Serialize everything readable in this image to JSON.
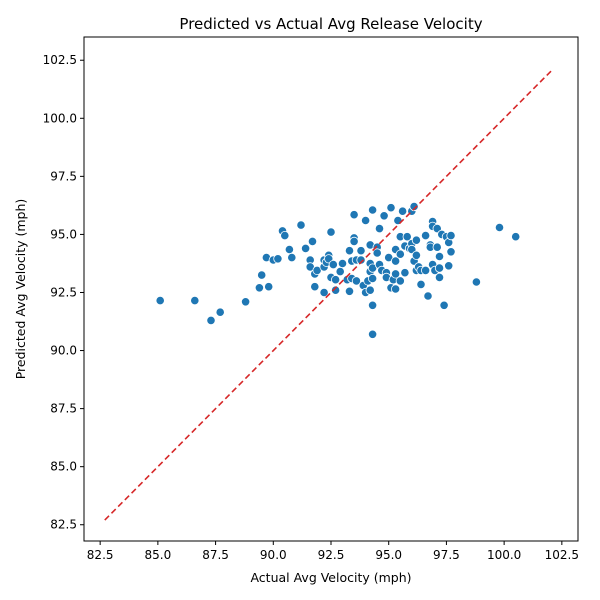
{
  "chart_data": {
    "type": "scatter",
    "title": "Predicted vs Actual Avg Release Velocity",
    "xlabel": "Actual Avg Velocity (mph)",
    "ylabel": "Predicted Avg Velocity (mph)",
    "xlim": [
      81.8,
      103.2
    ],
    "ylim": [
      81.8,
      103.5
    ],
    "xticks": [
      "82.5",
      "85.0",
      "87.5",
      "90.0",
      "92.5",
      "95.0",
      "97.5",
      "100.0",
      "102.5"
    ],
    "yticks": [
      "82.5",
      "85.0",
      "87.5",
      "90.0",
      "92.5",
      "95.0",
      "97.5",
      "100.0",
      "102.5"
    ],
    "grid": false,
    "legend": "none",
    "colors": {
      "points": "#1f77b4",
      "point_edge": "#ffffff",
      "reference_line": "#d62728"
    },
    "reference_line": {
      "style": "dashed",
      "from": [
        82.7,
        82.7
      ],
      "to": [
        102.1,
        102.1
      ]
    },
    "points": [
      [
        85.1,
        92.15
      ],
      [
        86.6,
        92.15
      ],
      [
        87.3,
        91.3
      ],
      [
        87.7,
        91.65
      ],
      [
        88.8,
        92.1
      ],
      [
        89.4,
        92.7
      ],
      [
        89.5,
        93.25
      ],
      [
        89.7,
        94.0
      ],
      [
        89.8,
        92.75
      ],
      [
        90.0,
        93.9
      ],
      [
        90.2,
        93.95
      ],
      [
        90.4,
        95.15
      ],
      [
        90.5,
        94.95
      ],
      [
        90.7,
        94.35
      ],
      [
        90.8,
        94.0
      ],
      [
        91.2,
        95.4
      ],
      [
        91.4,
        94.4
      ],
      [
        91.6,
        93.9
      ],
      [
        91.6,
        93.6
      ],
      [
        91.7,
        94.7
      ],
      [
        91.8,
        92.75
      ],
      [
        91.8,
        93.3
      ],
      [
        91.9,
        93.45
      ],
      [
        92.2,
        93.9
      ],
      [
        92.2,
        93.6
      ],
      [
        92.2,
        92.5
      ],
      [
        92.3,
        93.8
      ],
      [
        92.4,
        94.1
      ],
      [
        92.4,
        93.95
      ],
      [
        92.5,
        95.1
      ],
      [
        92.5,
        93.15
      ],
      [
        92.6,
        93.7
      ],
      [
        92.7,
        92.6
      ],
      [
        92.7,
        93.05
      ],
      [
        92.9,
        93.4
      ],
      [
        93.0,
        93.75
      ],
      [
        93.2,
        93.05
      ],
      [
        93.3,
        94.3
      ],
      [
        93.3,
        92.55
      ],
      [
        93.4,
        93.85
      ],
      [
        93.4,
        93.1
      ],
      [
        93.5,
        95.85
      ],
      [
        93.5,
        94.85
      ],
      [
        93.5,
        94.7
      ],
      [
        93.6,
        93.9
      ],
      [
        93.6,
        93.0
      ],
      [
        93.8,
        94.3
      ],
      [
        93.8,
        93.9
      ],
      [
        93.9,
        92.8
      ],
      [
        94.0,
        92.5
      ],
      [
        94.0,
        95.6
      ],
      [
        94.1,
        93.0
      ],
      [
        94.2,
        94.55
      ],
      [
        94.2,
        93.75
      ],
      [
        94.2,
        93.4
      ],
      [
        94.2,
        92.6
      ],
      [
        94.3,
        96.05
      ],
      [
        94.3,
        93.55
      ],
      [
        94.3,
        93.1
      ],
      [
        94.3,
        91.95
      ],
      [
        94.3,
        90.7
      ],
      [
        94.5,
        94.45
      ],
      [
        94.5,
        94.2
      ],
      [
        94.6,
        95.25
      ],
      [
        94.6,
        93.7
      ],
      [
        94.7,
        93.45
      ],
      [
        94.8,
        95.8
      ],
      [
        94.9,
        93.35
      ],
      [
        94.9,
        93.15
      ],
      [
        95.0,
        94.0
      ],
      [
        95.1,
        96.15
      ],
      [
        95.1,
        92.7
      ],
      [
        95.2,
        93.05
      ],
      [
        95.3,
        94.35
      ],
      [
        95.3,
        93.85
      ],
      [
        95.3,
        93.3
      ],
      [
        95.3,
        92.65
      ],
      [
        95.4,
        95.6
      ],
      [
        95.5,
        94.9
      ],
      [
        95.5,
        94.15
      ],
      [
        95.5,
        93.0
      ],
      [
        95.6,
        96.0
      ],
      [
        95.7,
        94.5
      ],
      [
        95.7,
        93.35
      ],
      [
        95.8,
        94.9
      ],
      [
        95.9,
        94.4
      ],
      [
        96.0,
        96.0
      ],
      [
        96.0,
        94.6
      ],
      [
        96.0,
        94.35
      ],
      [
        96.1,
        96.2
      ],
      [
        96.1,
        93.85
      ],
      [
        96.2,
        94.75
      ],
      [
        96.2,
        94.1
      ],
      [
        96.2,
        93.45
      ],
      [
        96.3,
        93.6
      ],
      [
        96.4,
        93.45
      ],
      [
        96.4,
        92.85
      ],
      [
        96.6,
        94.95
      ],
      [
        96.6,
        93.45
      ],
      [
        96.7,
        92.35
      ],
      [
        96.8,
        94.55
      ],
      [
        96.8,
        94.45
      ],
      [
        96.9,
        95.55
      ],
      [
        96.9,
        95.35
      ],
      [
        96.9,
        93.7
      ],
      [
        97.0,
        93.45
      ],
      [
        97.1,
        95.25
      ],
      [
        97.1,
        94.45
      ],
      [
        97.2,
        94.05
      ],
      [
        97.2,
        93.55
      ],
      [
        97.2,
        93.15
      ],
      [
        97.3,
        95.0
      ],
      [
        97.4,
        91.95
      ],
      [
        97.5,
        94.9
      ],
      [
        97.6,
        94.65
      ],
      [
        97.6,
        93.65
      ],
      [
        97.7,
        94.95
      ],
      [
        97.7,
        94.25
      ],
      [
        98.8,
        92.95
      ],
      [
        99.8,
        95.3
      ],
      [
        100.5,
        94.9
      ]
    ]
  }
}
